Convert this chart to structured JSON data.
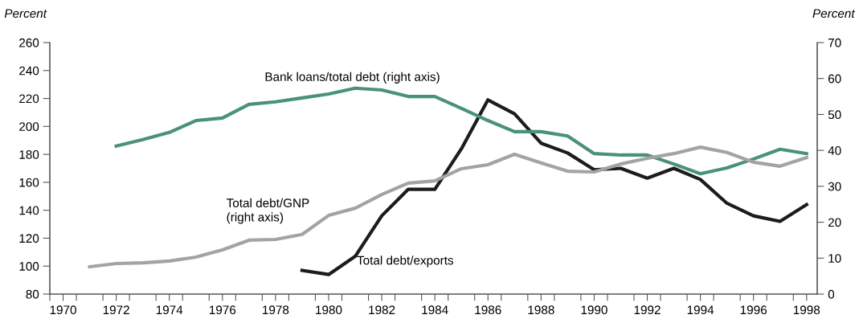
{
  "chart_data": {
    "type": "line",
    "ylabel": "Percent",
    "y2label": "Percent",
    "xlim": [
      1969.5,
      1998.4
    ],
    "xticks": [
      {
        "value": 1969.5,
        "label": null
      },
      1970,
      {
        "value": 1970.5,
        "label": null
      },
      {
        "value": 1971.5,
        "label": null
      },
      1972,
      {
        "value": 1972.5,
        "label": null
      },
      {
        "value": 1973.5,
        "label": null
      },
      1974,
      {
        "value": 1974.5,
        "label": null
      },
      {
        "value": 1975.5,
        "label": null
      },
      1976,
      {
        "value": 1976.5,
        "label": null
      },
      {
        "value": 1977.5,
        "label": null
      },
      1978,
      {
        "value": 1978.5,
        "label": null
      },
      {
        "value": 1979.5,
        "label": null
      },
      1980,
      {
        "value": 1980.5,
        "label": null
      },
      {
        "value": 1981.5,
        "label": null
      },
      1982,
      {
        "value": 1982.5,
        "label": null
      },
      {
        "value": 1983.5,
        "label": null
      },
      1984,
      {
        "value": 1984.5,
        "label": null
      },
      {
        "value": 1985.5,
        "label": null
      },
      1986,
      {
        "value": 1986.5,
        "label": null
      },
      {
        "value": 1987.5,
        "label": null
      },
      1988,
      {
        "value": 1988.5,
        "label": null
      },
      {
        "value": 1989.5,
        "label": null
      },
      1990,
      {
        "value": 1990.5,
        "label": null
      },
      {
        "value": 1991.5,
        "label": null
      },
      1992,
      {
        "value": 1992.5,
        "label": null
      },
      {
        "value": 1993.5,
        "label": null
      },
      1994,
      {
        "value": 1994.5,
        "label": null
      },
      {
        "value": 1995.5,
        "label": null
      },
      1996,
      {
        "value": 1996.5,
        "label": null
      },
      {
        "value": 1997.5,
        "label": null
      },
      1998
    ],
    "ylim": [
      80,
      260
    ],
    "yticks": [
      80,
      100,
      120,
      140,
      160,
      180,
      200,
      220,
      240,
      260
    ],
    "y2lim": [
      0,
      70
    ],
    "y2ticks": [
      0,
      10,
      20,
      30,
      40,
      50,
      60,
      70
    ],
    "grid": false,
    "legend": false,
    "marker": "none",
    "line_style": "solid",
    "series": [
      {
        "name": "Bank loans/total debt (right axis)",
        "color": "#4a9277",
        "axis": "y2",
        "x": [
          1972,
          1973,
          1974,
          1975,
          1976,
          1977,
          1978,
          1979,
          1980,
          1981,
          1982,
          1983,
          1984,
          1985,
          1986,
          1987,
          1988,
          1989,
          1990,
          1991,
          1992,
          1993,
          1994,
          1995,
          1996,
          1997,
          1998
        ],
        "values": [
          41.2,
          43.0,
          45.0,
          48.3,
          49.0,
          52.8,
          53.5,
          54.6,
          55.7,
          57.3,
          56.8,
          55.0,
          55.0,
          51.7,
          48.3,
          45.2,
          45.2,
          44.0,
          39.1,
          38.7,
          38.7,
          36.2,
          33.5,
          35.1,
          37.6,
          40.3,
          39.1
        ]
      },
      {
        "name": "Total debt/GNP\n(right axis)",
        "color": "#a3a3a3",
        "axis": "y2",
        "x": [
          1971,
          1972,
          1973,
          1974,
          1975,
          1976,
          1977,
          1978,
          1979,
          1980,
          1981,
          1982,
          1983,
          1984,
          1985,
          1986,
          1987,
          1988,
          1989,
          1990,
          1991,
          1992,
          1993,
          1994,
          1995,
          1996,
          1997,
          1998
        ],
        "values": [
          7.6,
          8.5,
          8.7,
          9.2,
          10.3,
          12.3,
          15.0,
          15.2,
          16.6,
          21.9,
          23.9,
          27.7,
          30.9,
          31.5,
          34.9,
          36.0,
          38.9,
          36.5,
          34.2,
          34.0,
          36.2,
          37.8,
          39.1,
          40.9,
          39.4,
          36.7,
          35.6,
          38.0
        ]
      },
      {
        "name": "Total debt/exports",
        "color": "#1c1c1c",
        "axis": "y",
        "x": [
          1979,
          1980,
          1981,
          1982,
          1983,
          1984,
          1985,
          1986,
          1987,
          1988,
          1989,
          1990,
          1991,
          1992,
          1993,
          1994,
          1995,
          1996,
          1997,
          1998
        ],
        "values": [
          97,
          94,
          107,
          136,
          155,
          155,
          184,
          219,
          209,
          188,
          181,
          169,
          170,
          163,
          170,
          162,
          145,
          136,
          132,
          144
        ]
      }
    ]
  }
}
